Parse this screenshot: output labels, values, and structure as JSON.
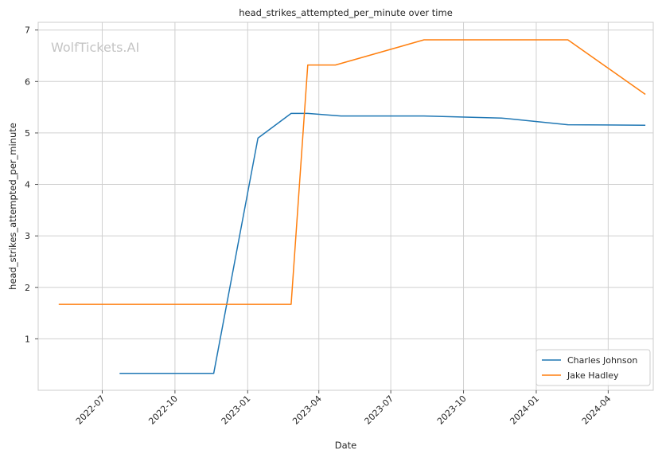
{
  "chart_data": {
    "type": "line",
    "title": "head_strikes_attempted_per_minute over time",
    "xlabel": "Date",
    "ylabel": "head_strikes_attempted_per_minute",
    "watermark": "WolfTickets.AI",
    "x_ticks": [
      "2022-07",
      "2022-10",
      "2023-01",
      "2023-04",
      "2023-07",
      "2023-10",
      "2024-01",
      "2024-04"
    ],
    "y_ticks": [
      1,
      2,
      3,
      4,
      5,
      6,
      7
    ],
    "xlim": [
      "2022-04-11",
      "2024-05-28"
    ],
    "ylim": [
      0.0,
      7.15
    ],
    "grid": true,
    "legend_position": "bottom-right",
    "colors": {
      "Charles Johnson": "#1f77b4",
      "Jake Hadley": "#ff7f0e",
      "grid": "#d0d0d0",
      "axis": "#cccccc"
    },
    "series": [
      {
        "name": "Charles Johnson",
        "points": [
          {
            "x": "2022-07-23",
            "y": 0.33
          },
          {
            "x": "2022-11-19",
            "y": 0.33
          },
          {
            "x": "2023-01-14",
            "y": 4.9
          },
          {
            "x": "2023-02-25",
            "y": 5.38
          },
          {
            "x": "2023-03-18",
            "y": 5.38
          },
          {
            "x": "2023-04-29",
            "y": 5.33
          },
          {
            "x": "2023-08-12",
            "y": 5.33
          },
          {
            "x": "2023-11-18",
            "y": 5.29
          },
          {
            "x": "2024-02-10",
            "y": 5.16
          },
          {
            "x": "2024-05-18",
            "y": 5.15
          }
        ]
      },
      {
        "name": "Jake Hadley",
        "points": [
          {
            "x": "2022-05-07",
            "y": 1.67
          },
          {
            "x": "2023-02-25",
            "y": 1.67
          },
          {
            "x": "2023-03-18",
            "y": 6.32
          },
          {
            "x": "2023-04-22",
            "y": 6.32
          },
          {
            "x": "2023-08-12",
            "y": 6.81
          },
          {
            "x": "2024-02-10",
            "y": 6.81
          },
          {
            "x": "2024-05-18",
            "y": 5.75
          }
        ]
      }
    ]
  }
}
